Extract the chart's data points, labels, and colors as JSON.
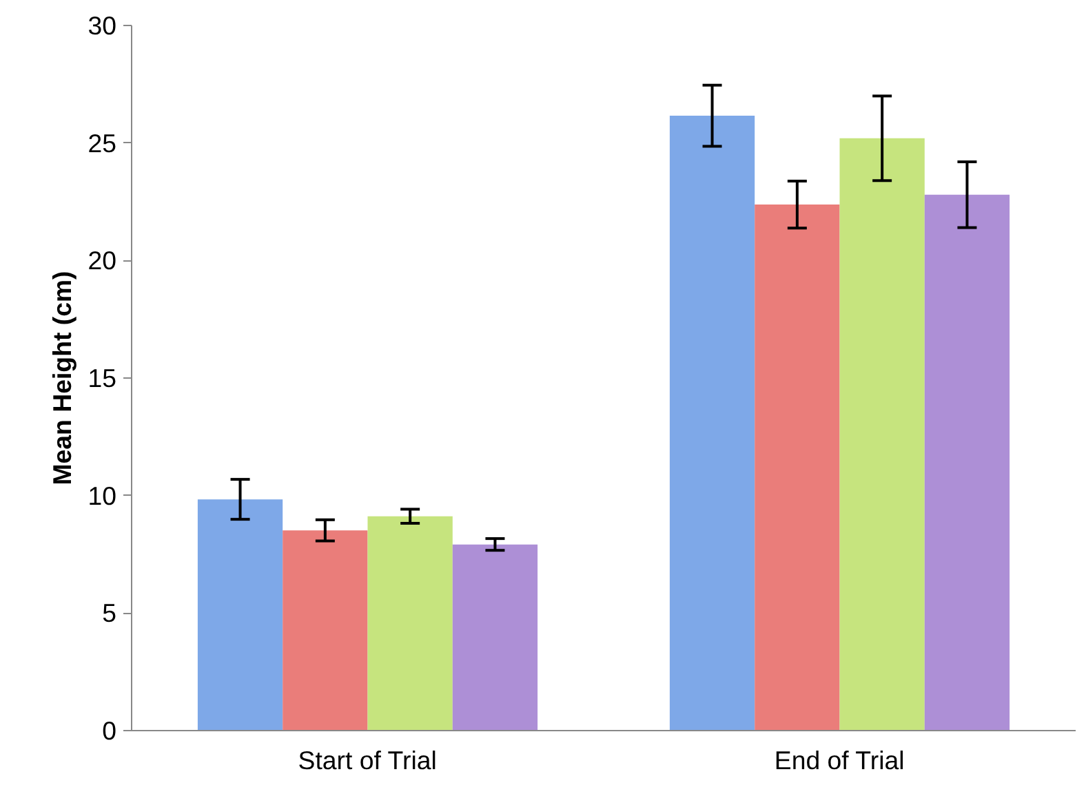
{
  "chart_data": {
    "type": "bar",
    "ylabel": "Mean Height (cm)",
    "categories": [
      "Start of Trial",
      "End of Trial"
    ],
    "series": [
      {
        "color": "#7ea8e8",
        "values": [
          9.84,
          26.16
        ],
        "errors": [
          0.85,
          1.3
        ]
      },
      {
        "color": "#ea7d7a",
        "values": [
          8.52,
          22.38
        ],
        "errors": [
          0.45,
          1.0
        ]
      },
      {
        "color": "#c6e47e",
        "values": [
          9.12,
          25.2
        ],
        "errors": [
          0.3,
          1.8
        ]
      },
      {
        "color": "#ad8fd6",
        "values": [
          7.92,
          22.8
        ],
        "errors": [
          0.25,
          1.4
        ]
      }
    ],
    "ylim": [
      0,
      30
    ],
    "yticks": [
      0,
      5,
      10,
      15,
      20,
      25,
      30
    ],
    "grid": false
  }
}
